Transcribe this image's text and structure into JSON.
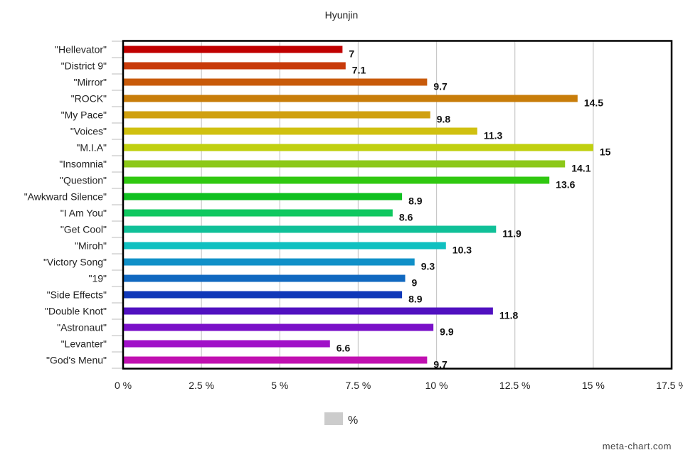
{
  "chart_data": {
    "type": "bar",
    "orientation": "horizontal",
    "title": "Hyunjin",
    "categories": [
      "\"Hellevator\"",
      "\"District 9\"",
      "\"Mirror\"",
      "\"ROCK\"",
      "\"My Pace\"",
      "\"Voices\"",
      "\"M.I.A\"",
      "\"Insomnia\"",
      "\"Question\"",
      "\"Awkward Silence\"",
      "\"I Am You\"",
      "\"Get Cool\"",
      "\"Miroh\"",
      "\"Victory Song\"",
      "\"19\"",
      "\"Side Effects\"",
      "\"Double Knot\"",
      "\"Astronaut\"",
      "\"Levanter\"",
      "\"God's Menu\""
    ],
    "values": [
      7,
      7.1,
      9.7,
      14.5,
      9.8,
      11.3,
      15,
      14.1,
      13.6,
      8.9,
      8.6,
      11.9,
      10.3,
      9.3,
      9,
      8.9,
      11.8,
      9.9,
      6.6,
      9.7
    ],
    "value_labels": [
      "7",
      "7.1",
      "9.7",
      "14.5",
      "9.8",
      "11.3",
      "15",
      "14.1",
      "13.6",
      "8.9",
      "8.6",
      "11.9",
      "10.3",
      "9.3",
      "9",
      "8.9",
      "11.8",
      "9.9",
      "6.6",
      "9.7"
    ],
    "colors": [
      "#c00000",
      "#c83a0a",
      "#c85a0a",
      "#c87d0a",
      "#d0a010",
      "#d0c010",
      "#c0d010",
      "#8cc818",
      "#30c810",
      "#10c020",
      "#10c860",
      "#10c098",
      "#10c0c0",
      "#1090c8",
      "#1068c0",
      "#1038b8",
      "#5010c0",
      "#7a10c8",
      "#a010c8",
      "#c010b0"
    ],
    "xlim": [
      0,
      17.5
    ],
    "xticks": [
      0,
      2.5,
      5,
      7.5,
      10,
      12.5,
      15,
      17.5
    ],
    "xtick_labels": [
      "0 %",
      "2.5 %",
      "5 %",
      "7.5 %",
      "10 %",
      "12.5 %",
      "15 %",
      "17.5 %"
    ],
    "grid": true,
    "legend": {
      "label": "%",
      "placement": "bottom",
      "swatch_color": "#cccccc"
    },
    "xlabel": "",
    "ylabel": ""
  },
  "footer": {
    "credit": "meta-chart.com"
  }
}
